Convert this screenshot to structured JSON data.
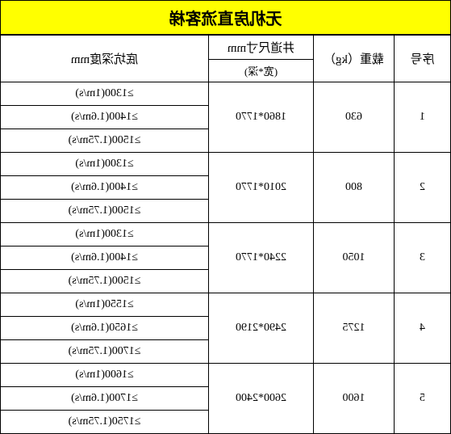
{
  "title": "无机房直流客梯",
  "headers": {
    "seq": "序号",
    "load": "载重（kg）",
    "shaft_main": "井道尺寸mm",
    "shaft_sub": "(宽*深)",
    "pit": "底坑深度mm"
  },
  "colors": {
    "title_bg": "#ffff00",
    "border": "#000000",
    "background": "#ffffff"
  },
  "rows": [
    {
      "seq": "1",
      "load": "630",
      "shaft": "1860*1770",
      "pits": [
        "≥1300(1m/s)",
        "≥1400(1.6m/s)",
        "≥1500(1.75m/s)"
      ]
    },
    {
      "seq": "2",
      "load": "800",
      "shaft": "2010*1770",
      "pits": [
        "≥1300(1m/s)",
        "≥1400(1.6m/s)",
        "≥1500(1.75m/s)"
      ]
    },
    {
      "seq": "3",
      "load": "1050",
      "shaft": "2240*1770",
      "pits": [
        "≥1300(1m/s)",
        "≥1400(1.6m/s)",
        "≥1500(1.75m/s)"
      ]
    },
    {
      "seq": "4",
      "load": "1275",
      "shaft": "2490*2190",
      "pits": [
        "≥1550(1m/s)",
        "≥1650(1.6m/s)",
        "≥1700(1.75m/s)"
      ]
    },
    {
      "seq": "5",
      "load": "1600",
      "shaft": "2600*2400",
      "pits": [
        "≥1600(1m/s)",
        "≥1700(1.6m/s)",
        "≥1750(1.75m/s)"
      ]
    }
  ]
}
